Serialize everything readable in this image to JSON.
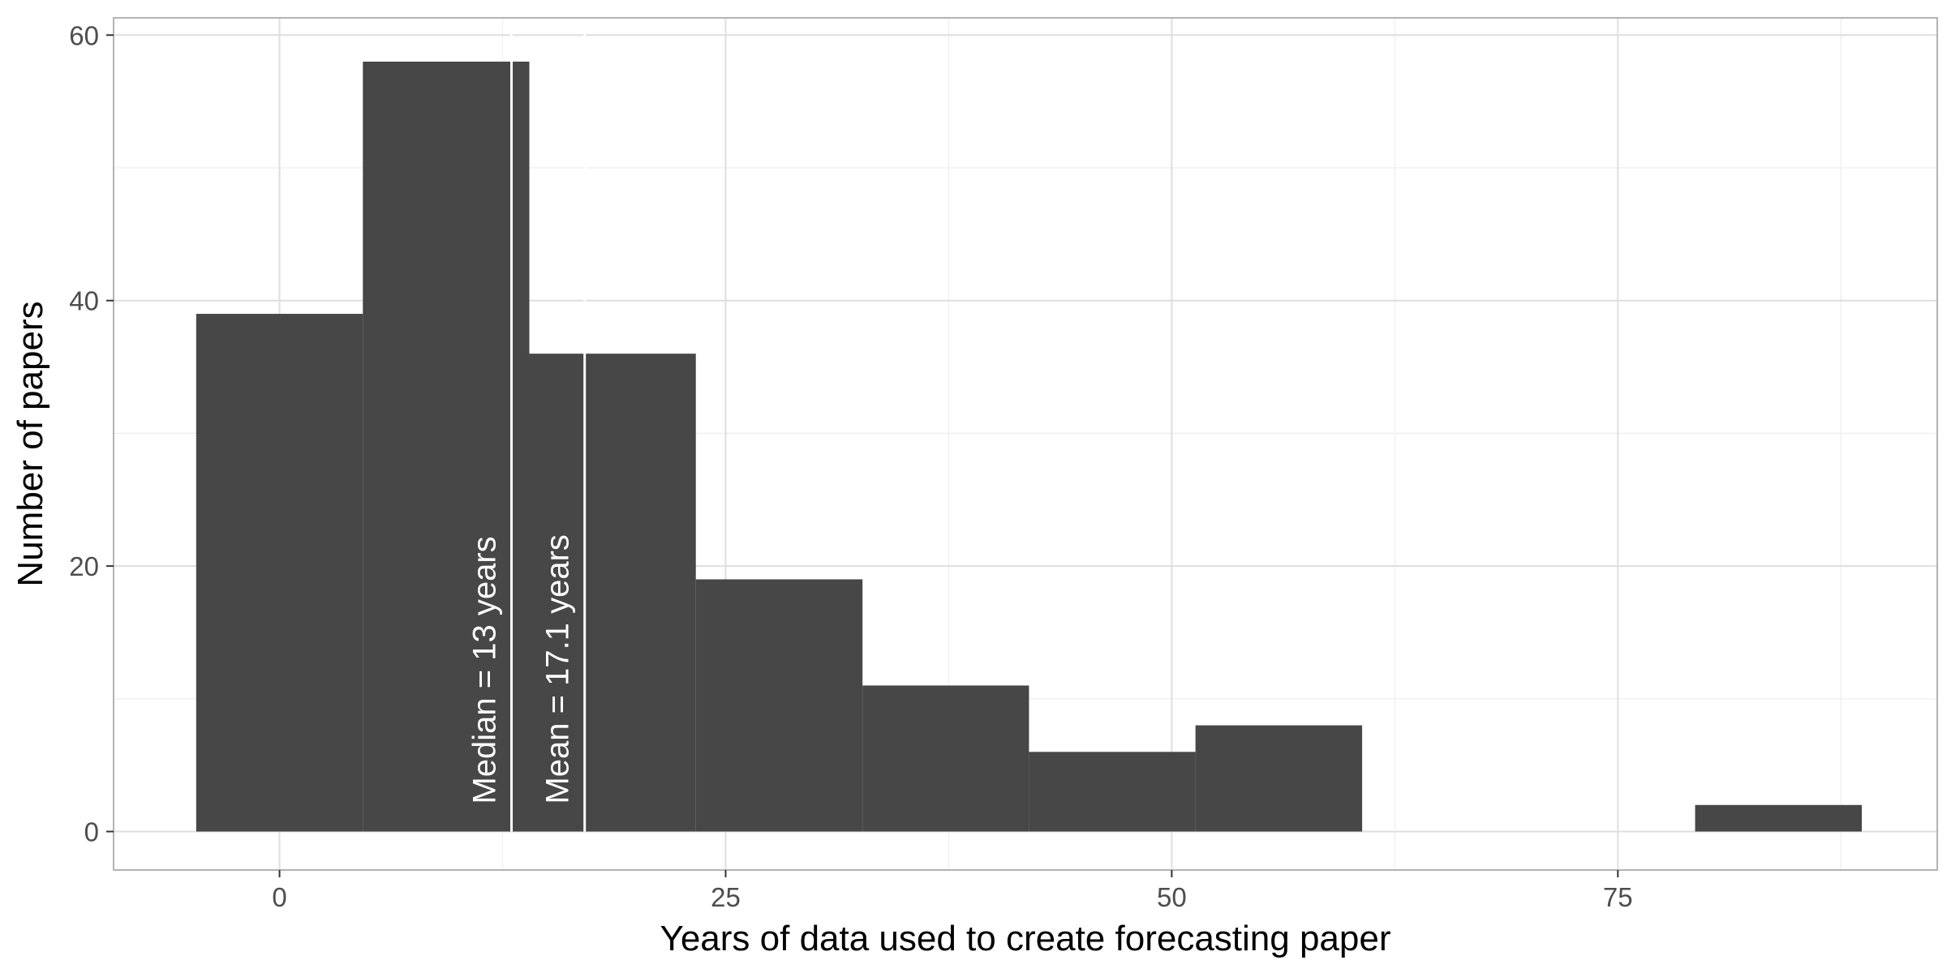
{
  "chart_data": {
    "type": "bar",
    "subtype": "histogram",
    "title": "",
    "xlabel": "Years of data used to create forecasting paper",
    "ylabel": "Number of papers",
    "xlim": [
      -9.3,
      92.9
    ],
    "ylim": [
      -2.9,
      61.3
    ],
    "x_ticks": [
      0,
      25,
      50,
      75
    ],
    "y_ticks": [
      0,
      20,
      40,
      60
    ],
    "bin_width": 9.33,
    "bins": [
      {
        "x0": -4.67,
        "x1": 4.67,
        "count": 39
      },
      {
        "x0": 4.67,
        "x1": 14.0,
        "count": 58
      },
      {
        "x0": 14.0,
        "x1": 23.33,
        "count": 36
      },
      {
        "x0": 23.33,
        "x1": 32.67,
        "count": 19
      },
      {
        "x0": 32.67,
        "x1": 42.0,
        "count": 11
      },
      {
        "x0": 42.0,
        "x1": 51.33,
        "count": 6
      },
      {
        "x0": 51.33,
        "x1": 60.67,
        "count": 8
      },
      {
        "x0": 60.67,
        "x1": 70.0,
        "count": 0
      },
      {
        "x0": 70.0,
        "x1": 79.33,
        "count": 0
      },
      {
        "x0": 79.33,
        "x1": 88.67,
        "count": 2
      }
    ],
    "reference_lines": [
      {
        "name": "median",
        "x": 13,
        "label": "Median = 13 years"
      },
      {
        "name": "mean",
        "x": 17.1,
        "label": "Mean = 17.1 years"
      }
    ],
    "grid": true,
    "legend": "none",
    "colors": {
      "bar": "#474747",
      "reference_line": "#ffffff",
      "grid_major": "#dedede",
      "grid_minor": "#eeeeee",
      "panel_border": "#b3b3b3",
      "tick_label": "#4d4d4d"
    }
  }
}
